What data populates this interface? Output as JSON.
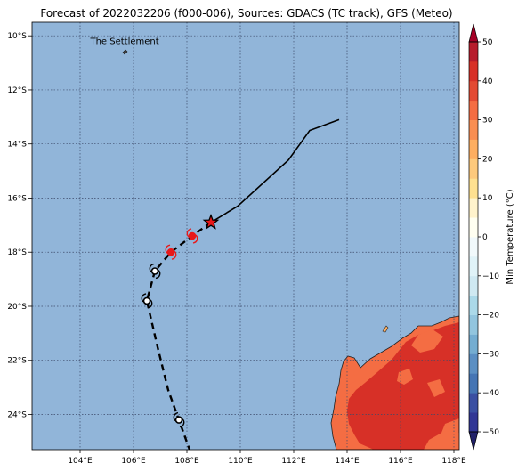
{
  "title": "Forecast of 2022032206 (f000-006), Sources: GDACS (TC track), GFS (Meteo)",
  "map": {
    "lon_range": [
      102.2,
      118.2
    ],
    "lat_range": [
      -25.3,
      -9.5
    ],
    "lon_ticks": [
      {
        "value": 104,
        "label": "104°E"
      },
      {
        "value": 106,
        "label": "106°E"
      },
      {
        "value": 108,
        "label": "108°E"
      },
      {
        "value": 110,
        "label": "110°E"
      },
      {
        "value": 112,
        "label": "112°E"
      },
      {
        "value": 114,
        "label": "114°E"
      },
      {
        "value": 116,
        "label": "116°E"
      },
      {
        "value": 118,
        "label": "118°E"
      }
    ],
    "lat_ticks": [
      {
        "value": -10,
        "label": "10°S"
      },
      {
        "value": -12,
        "label": "12°S"
      },
      {
        "value": -14,
        "label": "14°S"
      },
      {
        "value": -16,
        "label": "16°S"
      },
      {
        "value": -18,
        "label": "18°S"
      },
      {
        "value": -20,
        "label": "20°S"
      },
      {
        "value": -22,
        "label": "22°S"
      },
      {
        "value": -24,
        "label": "24°S"
      }
    ],
    "gridlines": true,
    "ocean_color": "#91b5d9",
    "place_label": {
      "text": "The Settlement",
      "lon": 105.67,
      "lat": -10.43
    },
    "past_track": [
      {
        "lon": 113.7,
        "lat": -13.1
      },
      {
        "lon": 112.6,
        "lat": -13.5
      },
      {
        "lon": 111.8,
        "lat": -14.6
      },
      {
        "lon": 109.9,
        "lat": -16.3
      },
      {
        "lon": 108.9,
        "lat": -16.9
      }
    ],
    "current_position": {
      "lon": 108.9,
      "lat": -16.9,
      "symbol": "star-marker"
    },
    "forecast_track": [
      {
        "lon": 108.9,
        "lat": -16.9
      },
      {
        "lon": 108.2,
        "lat": -17.4
      },
      {
        "lon": 107.4,
        "lat": -18.0
      },
      {
        "lon": 106.8,
        "lat": -18.7
      },
      {
        "lon": 106.5,
        "lat": -19.8
      },
      {
        "lon": 106.9,
        "lat": -21.5
      },
      {
        "lon": 107.3,
        "lat": -23.1
      },
      {
        "lon": 107.7,
        "lat": -24.2
      },
      {
        "lon": 108.1,
        "lat": -25.3
      }
    ],
    "forecast_points": [
      {
        "lon": 108.2,
        "lat": -17.4,
        "color": "#e8191a",
        "symbol": "cyclone-icon"
      },
      {
        "lon": 107.4,
        "lat": -18.0,
        "color": "#e8191a",
        "symbol": "cyclone-icon"
      },
      {
        "lon": 106.8,
        "lat": -18.7,
        "color": "#000000",
        "symbol": "cyclone-icon"
      },
      {
        "lon": 106.5,
        "lat": -19.8,
        "color": "#000000",
        "symbol": "cyclone-icon"
      },
      {
        "lon": 107.7,
        "lat": -24.2,
        "color": "#000000",
        "symbol": "cyclone-icon"
      }
    ]
  },
  "colorbar": {
    "label": "Min Temperature (°C)",
    "range": [
      -50,
      50
    ],
    "step": 5,
    "ticks": [
      {
        "value": 50,
        "label": "50"
      },
      {
        "value": 40,
        "label": "40"
      },
      {
        "value": 30,
        "label": "30"
      },
      {
        "value": 20,
        "label": "20"
      },
      {
        "value": 10,
        "label": "10"
      },
      {
        "value": 0,
        "label": "0"
      },
      {
        "value": -10,
        "label": "−10"
      },
      {
        "value": -20,
        "label": "−20"
      },
      {
        "value": -30,
        "label": "−30"
      },
      {
        "value": -40,
        "label": "−40"
      },
      {
        "value": -50,
        "label": "−50"
      }
    ],
    "colors": [
      "#313695",
      "#3a4fa2",
      "#4575b4",
      "#5b8fc3",
      "#74add1",
      "#92c5de",
      "#abd9e9",
      "#cfe9f2",
      "#e0f3f8",
      "#f1f9fb",
      "#fffff1",
      "#fff3cc",
      "#fee090",
      "#fdc97c",
      "#fdae61",
      "#f98e52",
      "#f46d43",
      "#e34a33",
      "#d73027",
      "#b71c2c"
    ],
    "extend_colors": {
      "low": "#212169",
      "high": "#a50026"
    }
  }
}
